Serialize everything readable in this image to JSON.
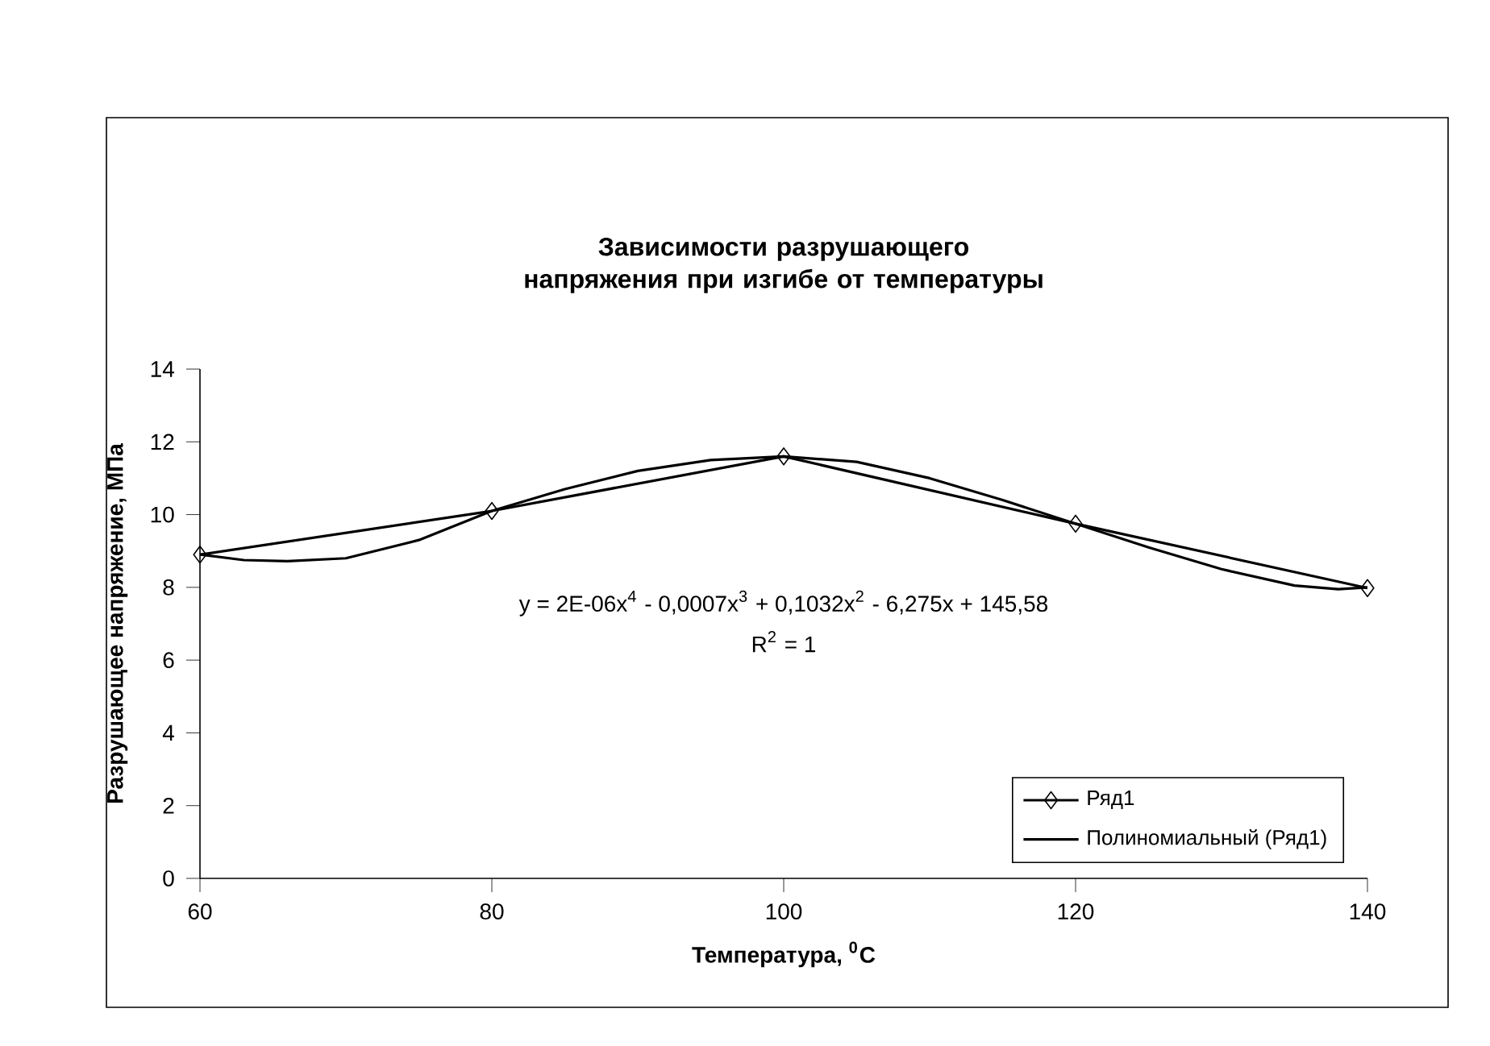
{
  "chart_data": {
    "type": "line",
    "title": "Зависимости разрушающего напряжения при изгибе от температуры",
    "xlabel": "Температура, $^{0}$С",
    "ylabel": "Разрушающее напряжение, МПа",
    "xlim": [
      60,
      140
    ],
    "xticks": [
      60,
      80,
      100,
      120,
      140
    ],
    "ylim": [
      0,
      14
    ],
    "yticks": [
      0,
      2,
      4,
      6,
      8,
      10,
      12,
      14
    ],
    "grid": false,
    "legend": "bottom right",
    "annotations": [
      "y = 2E-06x$^{4}$ - 0,0007x$^{3}$ + 0,1032x$^{2}$ - 6,275x + 145,58",
      "R$^{2}$ = 1"
    ],
    "series": [
      {
        "name": "Ряд1",
        "color": "#000000",
        "marker": "diamond",
        "line_style": "solid",
        "x": [
          60,
          80,
          100,
          120,
          140
        ],
        "values": [
          8.9,
          10.1,
          11.6,
          9.75,
          7.98
        ]
      },
      {
        "name": "Полиномиальный (Ряд1)",
        "color": "#000000",
        "marker": "none",
        "line_style": "solid",
        "x": [
          60,
          63,
          66,
          70,
          75,
          80,
          85,
          90,
          95,
          100,
          105,
          110,
          115,
          120,
          125,
          130,
          135,
          138,
          140
        ],
        "values": [
          8.9,
          8.75,
          8.72,
          8.8,
          9.3,
          10.1,
          10.7,
          11.2,
          11.5,
          11.6,
          11.45,
          11.0,
          10.4,
          9.75,
          9.1,
          8.5,
          8.05,
          7.95,
          8.0
        ]
      }
    ]
  }
}
